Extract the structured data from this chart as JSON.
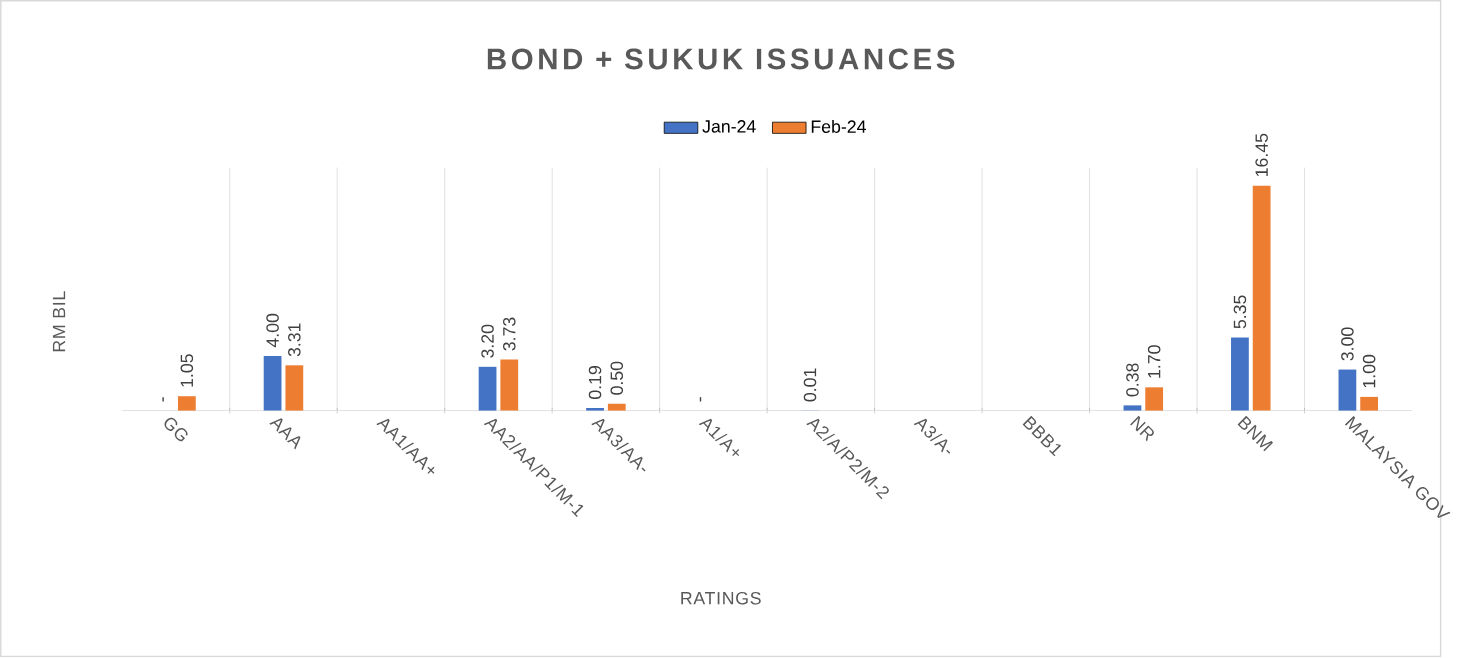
{
  "chart_data": {
    "type": "bar",
    "title": "BOND + SUKUK ISSUANCES",
    "xlabel": "RATINGS",
    "ylabel": "RM BIL",
    "categories": [
      "GG",
      "AAA",
      "AA1/AA+",
      "AA2/AA/P1/M-1",
      "AA3/AA-",
      "A1/A+",
      "A2/A/P2/M-2",
      "A3/A-",
      "BBB1",
      "NR",
      "BNM",
      "MALAYSIA GOV"
    ],
    "series": [
      {
        "name": "Jan-24",
        "color": "#4472c4",
        "values": [
          0,
          4.0,
          null,
          3.2,
          0.19,
          0,
          0.01,
          null,
          null,
          0.38,
          5.35,
          3.0
        ],
        "value_labels": [
          "-",
          "4.00",
          null,
          "3.20",
          "0.19",
          "-",
          "0.01",
          null,
          null,
          "0.38",
          "5.35",
          "3.00"
        ]
      },
      {
        "name": "Feb-24",
        "color": "#ed7d31",
        "values": [
          1.05,
          3.31,
          null,
          3.73,
          0.5,
          null,
          null,
          null,
          null,
          1.7,
          16.45,
          1.0
        ],
        "value_labels": [
          "1.05",
          "3.31",
          null,
          "3.73",
          "0.50",
          null,
          null,
          null,
          null,
          "1.70",
          "16.45",
          "1.00"
        ]
      }
    ],
    "legend": "top",
    "grid": "x"
  }
}
